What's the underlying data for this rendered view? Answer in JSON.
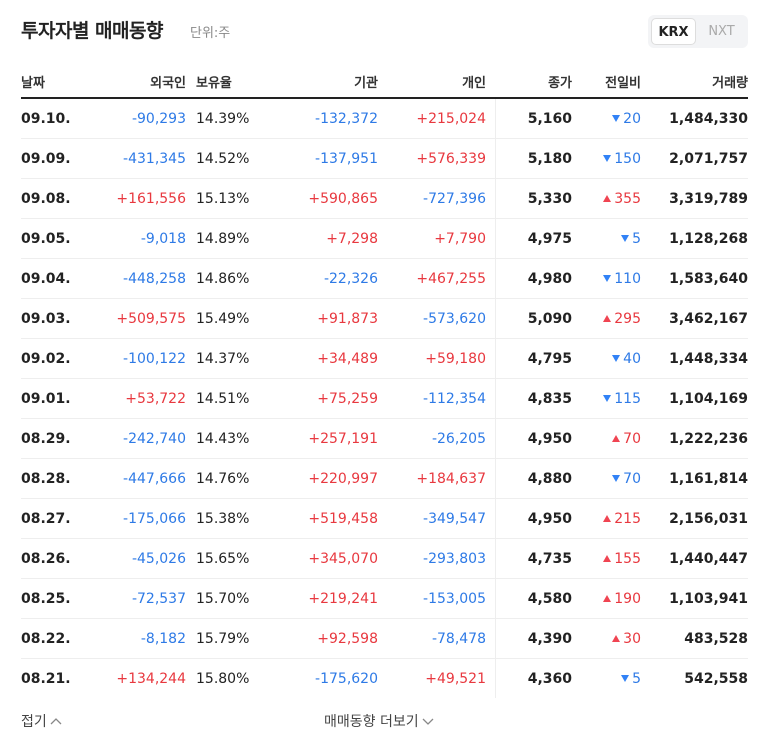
{
  "header": {
    "title": "투자자별 매매동향",
    "unit": "단위:주",
    "tabs": [
      "KRX",
      "NXT"
    ]
  },
  "table": {
    "columns": [
      "날짜",
      "외국인",
      "보유율",
      "기관",
      "개인",
      "종가",
      "전일비",
      "거래량"
    ],
    "rows": [
      {
        "date": "09.10.",
        "foreign": "-90,293",
        "ratio": "14.39%",
        "institution": "-132,372",
        "individual": "+215,024",
        "close": "5,160",
        "change": "20",
        "dir": "down",
        "volume": "1,484,330"
      },
      {
        "date": "09.09.",
        "foreign": "-431,345",
        "ratio": "14.52%",
        "institution": "-137,951",
        "individual": "+576,339",
        "close": "5,180",
        "change": "150",
        "dir": "down",
        "volume": "2,071,757"
      },
      {
        "date": "09.08.",
        "foreign": "+161,556",
        "ratio": "15.13%",
        "institution": "+590,865",
        "individual": "-727,396",
        "close": "5,330",
        "change": "355",
        "dir": "up",
        "volume": "3,319,789"
      },
      {
        "date": "09.05.",
        "foreign": "-9,018",
        "ratio": "14.89%",
        "institution": "+7,298",
        "individual": "+7,790",
        "close": "4,975",
        "change": "5",
        "dir": "down",
        "volume": "1,128,268"
      },
      {
        "date": "09.04.",
        "foreign": "-448,258",
        "ratio": "14.86%",
        "institution": "-22,326",
        "individual": "+467,255",
        "close": "4,980",
        "change": "110",
        "dir": "down",
        "volume": "1,583,640"
      },
      {
        "date": "09.03.",
        "foreign": "+509,575",
        "ratio": "15.49%",
        "institution": "+91,873",
        "individual": "-573,620",
        "close": "5,090",
        "change": "295",
        "dir": "up",
        "volume": "3,462,167"
      },
      {
        "date": "09.02.",
        "foreign": "-100,122",
        "ratio": "14.37%",
        "institution": "+34,489",
        "individual": "+59,180",
        "close": "4,795",
        "change": "40",
        "dir": "down",
        "volume": "1,448,334"
      },
      {
        "date": "09.01.",
        "foreign": "+53,722",
        "ratio": "14.51%",
        "institution": "+75,259",
        "individual": "-112,354",
        "close": "4,835",
        "change": "115",
        "dir": "down",
        "volume": "1,104,169"
      },
      {
        "date": "08.29.",
        "foreign": "-242,740",
        "ratio": "14.43%",
        "institution": "+257,191",
        "individual": "-26,205",
        "close": "4,950",
        "change": "70",
        "dir": "up",
        "volume": "1,222,236"
      },
      {
        "date": "08.28.",
        "foreign": "-447,666",
        "ratio": "14.76%",
        "institution": "+220,997",
        "individual": "+184,637",
        "close": "4,880",
        "change": "70",
        "dir": "down",
        "volume": "1,161,814"
      },
      {
        "date": "08.27.",
        "foreign": "-175,066",
        "ratio": "15.38%",
        "institution": "+519,458",
        "individual": "-349,547",
        "close": "4,950",
        "change": "215",
        "dir": "up",
        "volume": "2,156,031"
      },
      {
        "date": "08.26.",
        "foreign": "-45,026",
        "ratio": "15.65%",
        "institution": "+345,070",
        "individual": "-293,803",
        "close": "4,735",
        "change": "155",
        "dir": "up",
        "volume": "1,440,447"
      },
      {
        "date": "08.25.",
        "foreign": "-72,537",
        "ratio": "15.70%",
        "institution": "+219,241",
        "individual": "-153,005",
        "close": "4,580",
        "change": "190",
        "dir": "up",
        "volume": "1,103,941"
      },
      {
        "date": "08.22.",
        "foreign": "-8,182",
        "ratio": "15.79%",
        "institution": "+92,598",
        "individual": "-78,478",
        "close": "4,390",
        "change": "30",
        "dir": "up",
        "volume": "483,528"
      },
      {
        "date": "08.21.",
        "foreign": "+134,244",
        "ratio": "15.80%",
        "institution": "-175,620",
        "individual": "+49,521",
        "close": "4,360",
        "change": "5",
        "dir": "down",
        "volume": "542,558"
      }
    ]
  },
  "footer": {
    "collapse": "접기",
    "more": "매매동향 더보기"
  }
}
